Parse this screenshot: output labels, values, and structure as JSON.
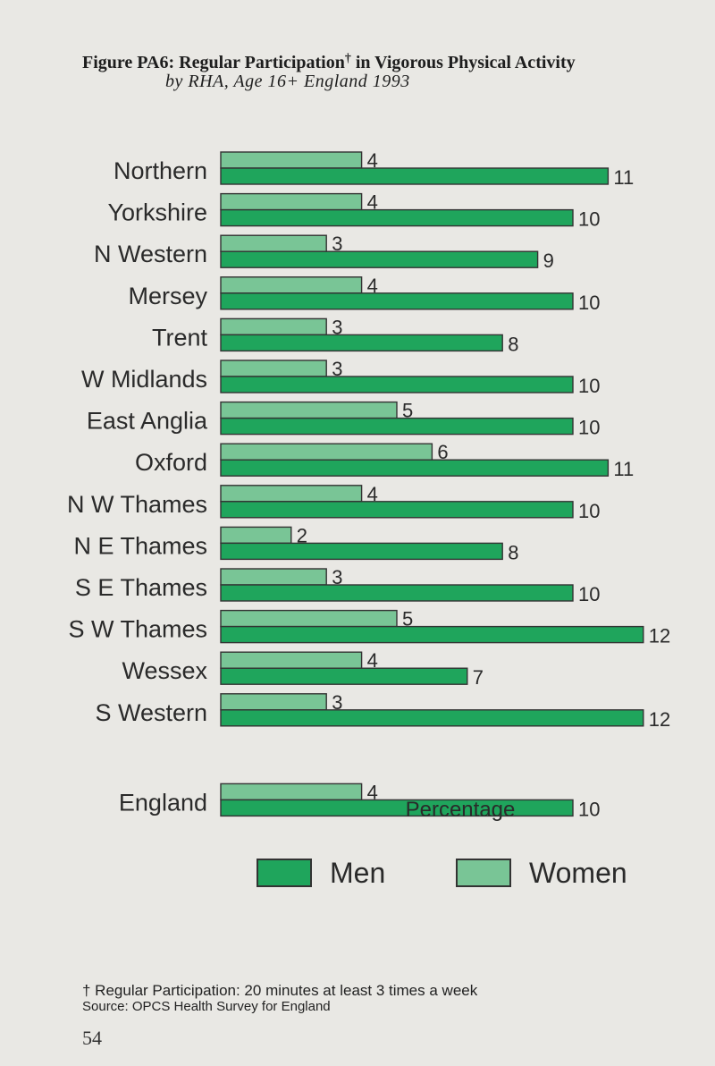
{
  "figure": {
    "title": "Figure PA6:   Regular Participation",
    "title_mark": "†",
    "title_rest": " in Vigorous Physical Activity",
    "subtitle": "by RHA, Age 16+   England   1993"
  },
  "chart_data": {
    "type": "bar",
    "orientation": "horizontal",
    "xlabel": "Percentage",
    "ylabel": "",
    "categories": [
      "Northern",
      "Yorkshire",
      "N Western",
      "Mersey",
      "Trent",
      "W Midlands",
      "East Anglia",
      "Oxford",
      "N W Thames",
      "N E Thames",
      "S E Thames",
      "S W Thames",
      "Wessex",
      "S Western",
      "England"
    ],
    "series": [
      {
        "name": "Men",
        "values": [
          11,
          10,
          9,
          10,
          8,
          10,
          10,
          11,
          10,
          8,
          10,
          12,
          7,
          12,
          10
        ]
      },
      {
        "name": "Women",
        "values": [
          4,
          4,
          3,
          4,
          3,
          3,
          5,
          6,
          4,
          2,
          3,
          5,
          4,
          3,
          4
        ]
      }
    ],
    "legend_position": "bottom",
    "grid": false,
    "colors": {
      "Men": "#1fa55c",
      "Women": "#79c596"
    }
  },
  "legend": {
    "men_label": "Men",
    "women_label": "Women"
  },
  "footnote": "† Regular Participation: 20 minutes at least 3 times a week",
  "source": "Source: OPCS Health Survey for England",
  "page_number": "54"
}
